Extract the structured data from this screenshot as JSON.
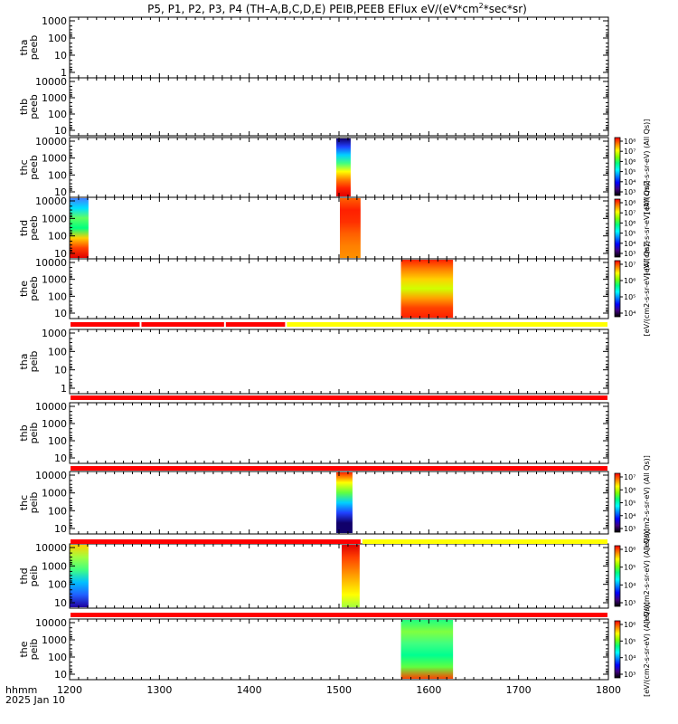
{
  "title": "P5, P1, P2, P3, P4 (TH–A,B,C,D,E) PEIB,PEEB EFlux eV/(eV*cm",
  "title_sup": "2",
  "title_end": "*sec*sr)",
  "chart_data": {
    "type": "heatmap",
    "x_axis": {
      "ticks": [
        1200,
        1300,
        1400,
        1500,
        1600,
        1700,
        1800
      ],
      "labels": [
        "1200",
        "1300",
        "1400",
        "1500",
        "1600",
        "1700",
        "1800"
      ],
      "label_line1": "hhmm",
      "label_line2": "2025 Jan 10",
      "range": [
        1200,
        1800
      ]
    },
    "panels": [
      {
        "probe": "tha",
        "instrument": "peeb",
        "yticks": [
          "1000",
          "100",
          "10",
          "1"
        ],
        "ylim": [
          1,
          2000
        ],
        "log": true,
        "spectra": []
      },
      {
        "probe": "thb",
        "instrument": "peeb",
        "yticks": [
          "10000",
          "1000",
          "100",
          "10"
        ],
        "ylim": [
          7,
          20000
        ],
        "log": true,
        "spectra": []
      },
      {
        "probe": "thc",
        "instrument": "peeb",
        "yticks": [
          "10000",
          "1000",
          "100",
          "10"
        ],
        "ylim": [
          7,
          40000
        ],
        "log": true,
        "spectra": [
          {
            "t_start": 1497,
            "t_end": 1513,
            "gradient": [
              "#10006a",
              "#2040ff",
              "#00d0ff",
              "#40ff80",
              "#ffff00",
              "#ff8000",
              "#ff2000",
              "#e00000"
            ]
          }
        ]
      },
      {
        "probe": "thd",
        "instrument": "peeb",
        "yticks": [
          "10000",
          "1000",
          "100",
          "10"
        ],
        "ylim": [
          7,
          40000
        ],
        "log": true,
        "spectra": [
          {
            "t_start": 1200,
            "t_end": 1221,
            "gradient": [
              "#4080ff",
              "#00e0ff",
              "#60ff60",
              "#00ff80",
              "#ffd000",
              "#ff4000",
              "#e00000"
            ]
          },
          {
            "t_start": 1501,
            "t_end": 1524,
            "gradient": [
              "#ff6000",
              "#ff2000",
              "#ff3000",
              "#ff6000",
              "#ff8000",
              "#ff9000"
            ]
          }
        ]
      },
      {
        "probe": "the",
        "instrument": "peeb",
        "yticks": [
          "10000",
          "1000",
          "100",
          "10"
        ],
        "ylim": [
          5,
          40000
        ],
        "log": true,
        "spectra": [
          {
            "t_start": 1569,
            "t_end": 1627,
            "gradient": [
              "#ff2000",
              "#ff8000",
              "#ffd000",
              "#d0ff00",
              "#ffa000",
              "#ff4000",
              "#ff2000"
            ]
          }
        ]
      },
      {
        "probe": "tha",
        "instrument": "peib",
        "yticks": [
          "1000",
          "100",
          "10",
          "1"
        ],
        "ylim": [
          0.5,
          2000
        ],
        "log": true,
        "spectra": []
      },
      {
        "probe": "thb",
        "instrument": "peib",
        "yticks": [
          "10000",
          "1000",
          "100",
          "10"
        ],
        "ylim": [
          5,
          20000
        ],
        "log": true,
        "spectra": []
      },
      {
        "probe": "thc",
        "instrument": "peib",
        "yticks": [
          "10000",
          "1000",
          "100",
          "10"
        ],
        "ylim": [
          4,
          40000
        ],
        "log": true,
        "spectra": [
          {
            "t_start": 1497,
            "t_end": 1515,
            "gradient": [
              "#ff2000",
              "#ffff00",
              "#60ff40",
              "#00d0ff",
              "#2040ff",
              "#10006a",
              "#10006a"
            ]
          }
        ]
      },
      {
        "probe": "thd",
        "instrument": "peib",
        "yticks": [
          "10000",
          "1000",
          "100",
          "10"
        ],
        "ylim": [
          4,
          40000
        ],
        "log": true,
        "spectra": [
          {
            "t_start": 1200,
            "t_end": 1221,
            "gradient": [
              "#ffd000",
              "#a0ff40",
              "#40ff80",
              "#00c0ff",
              "#2060ff",
              "#2000a0"
            ]
          },
          {
            "t_start": 1503,
            "t_end": 1523,
            "gradient": [
              "#e00000",
              "#ff4000",
              "#ff8000",
              "#ffc000",
              "#ffff00",
              "#a0ff40"
            ]
          }
        ]
      },
      {
        "probe": "the",
        "instrument": "peib",
        "yticks": [
          "10000",
          "1000",
          "100",
          "10"
        ],
        "ylim": [
          5,
          40000
        ],
        "log": true,
        "spectra": [
          {
            "t_start": 1569,
            "t_end": 1627,
            "gradient": [
              "#20ff80",
              "#80ff40",
              "#40ff80",
              "#00ff90",
              "#60ff40",
              "#ff4000"
            ]
          }
        ]
      }
    ],
    "status_bars": [
      {
        "segments": [
          {
            "t_start": 1200,
            "t_end": 1279,
            "color": "#ff0000"
          },
          {
            "t_start": 1279,
            "t_end": 1373,
            "color": "#ff0000"
          },
          {
            "t_start": 1373,
            "t_end": 1441,
            "color": "#ff0000"
          },
          {
            "t_start": 1441,
            "t_end": 1800,
            "color": "#ffff00"
          }
        ]
      },
      {
        "segments": [
          {
            "t_start": 1200,
            "t_end": 1800,
            "color": "#ff0000"
          }
        ]
      },
      {
        "segments": [
          {
            "t_start": 1200,
            "t_end": 1800,
            "color": "#ff0000"
          }
        ]
      },
      {
        "segments": [
          {
            "t_start": 1200,
            "t_end": 1525,
            "color": "#ff0000"
          },
          {
            "t_start": 1525,
            "t_end": 1800,
            "color": "#ffff00"
          }
        ]
      },
      {
        "segments": [
          {
            "t_start": 1200,
            "t_end": 1800,
            "color": "#ff0000"
          }
        ]
      }
    ],
    "colorbars": [
      {
        "label": "[eV/(cm2-s-sr-eV) (All Qs)]",
        "ticks": [
          "10⁸",
          "10⁷",
          "10⁶",
          "10⁵",
          "10⁴",
          "10³"
        ]
      },
      {
        "label": "[eV/(cm2-s-sr-eV) (All Qs)]",
        "ticks": [
          "10⁸",
          "10⁷",
          "10⁶",
          "10⁵",
          "10⁴",
          "10³"
        ]
      },
      {
        "label": "[eV/(cm2-s-sr-eV) (All Qs)]",
        "ticks": [
          "10⁷",
          "10⁶",
          "10⁵",
          "10⁴"
        ]
      },
      {
        "label": "[eV/(cm2-s-sr-eV) (All Qs)]",
        "ticks": [
          "10⁷",
          "10⁶",
          "10⁵",
          "10⁴",
          "10³"
        ]
      },
      {
        "label": "[eV/(cm2-s-sr-eV) (All Qs)]",
        "ticks": [
          "10⁶",
          "10⁵",
          "10⁴",
          "10³"
        ]
      },
      {
        "label": "[eV/(cm2-s-sr-eV) (All Qs)]",
        "ticks": [
          "10⁶",
          "10⁵",
          "10⁴",
          "10³"
        ]
      }
    ],
    "colorbar_palette": [
      "#ff0000",
      "#ff8000",
      "#ffff00",
      "#80ff00",
      "#00ff80",
      "#00ffff",
      "#0080ff",
      "#0000ff",
      "#400080",
      "#000000"
    ]
  }
}
